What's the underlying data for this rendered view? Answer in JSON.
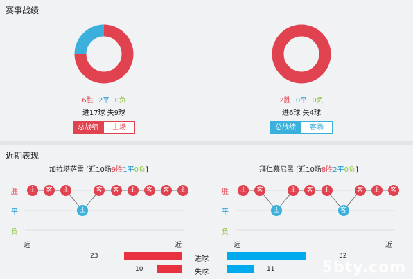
{
  "record_section": {
    "title": "赛事战绩"
  },
  "left_record": {
    "wins": "6胜",
    "draws": "2平",
    "losses": "0负",
    "goals": "进17球",
    "conceded": "失9球",
    "tab_active": "总战绩",
    "tab_inactive": "主场",
    "accent": "#e0424f",
    "chart_data": {
      "type": "pie",
      "categories": [
        "胜",
        "平",
        "负"
      ],
      "values": [
        6,
        2,
        0
      ],
      "colors": [
        "#e0424f",
        "#3bb0dc",
        "#8cc43d"
      ]
    }
  },
  "right_record": {
    "wins": "2胜",
    "draws": "0平",
    "losses": "0负",
    "goals": "进6球",
    "conceded": "失4球",
    "tab_active": "总战绩",
    "tab_inactive": "客场",
    "accent": "#3bb0dc",
    "chart_data": {
      "type": "pie",
      "categories": [
        "胜",
        "平",
        "负"
      ],
      "values": [
        2,
        0,
        0
      ],
      "colors": [
        "#e0424f",
        "#3bb0dc",
        "#8cc43d"
      ]
    }
  },
  "recent_section": {
    "title": "近期表现"
  },
  "left_team": {
    "name": "加拉塔萨雷",
    "bracket_open": "[近10场",
    "wins": "9胜",
    "draws": "1平",
    "losses": "0负",
    "bracket_close": "]",
    "results": [
      {
        "r": "W",
        "v": "主"
      },
      {
        "r": "W",
        "v": "客"
      },
      {
        "r": "W",
        "v": "主"
      },
      {
        "r": "D",
        "v": "主"
      },
      {
        "r": "W",
        "v": "客"
      },
      {
        "r": "W",
        "v": "客"
      },
      {
        "r": "W",
        "v": "主"
      },
      {
        "r": "W",
        "v": "客"
      },
      {
        "r": "W",
        "v": "客"
      },
      {
        "r": "W",
        "v": "主"
      }
    ]
  },
  "right_team": {
    "name": "拜仁慕尼黑",
    "bracket_open": "[近10场",
    "wins": "8胜",
    "draws": "2平",
    "losses": "0负",
    "bracket_close": "]",
    "results": [
      {
        "r": "W",
        "v": "主"
      },
      {
        "r": "W",
        "v": "客"
      },
      {
        "r": "D",
        "v": "主"
      },
      {
        "r": "W",
        "v": "主"
      },
      {
        "r": "W",
        "v": "客"
      },
      {
        "r": "W",
        "v": "主"
      },
      {
        "r": "D",
        "v": "客"
      },
      {
        "r": "W",
        "v": "客"
      },
      {
        "r": "W",
        "v": "主"
      },
      {
        "r": "W",
        "v": "客"
      }
    ]
  },
  "row_labels": {
    "win": "胜",
    "draw": "平",
    "loss": "负"
  },
  "axis": {
    "far": "远",
    "near": "近"
  },
  "comparison": {
    "goals_label": "进球",
    "conceded_label": "失球",
    "left_goals": 23,
    "right_goals": 32,
    "left_conceded": 10,
    "right_conceded": 11,
    "left_color": "#e8323f",
    "right_color": "#00aaee"
  },
  "watermark": "5bty.com"
}
